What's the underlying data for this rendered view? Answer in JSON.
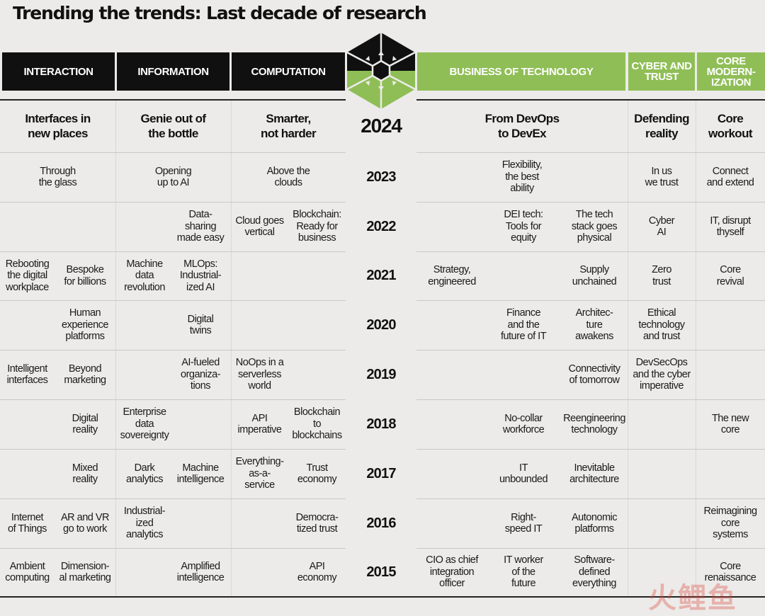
{
  "title": "Trending the trends: Last decade of research",
  "headers": [
    {
      "label": "INTERACTION",
      "theme": "black"
    },
    {
      "label": "INFORMATION",
      "theme": "black"
    },
    {
      "label": "COMPUTATION",
      "theme": "black"
    },
    {
      "label": "BUSINESS OF TECHNOLOGY",
      "theme": "green"
    },
    {
      "label": "CYBER AND\nTRUST",
      "theme": "green"
    },
    {
      "label": "CORE\nMODERN-\nIZATION",
      "theme": "green"
    }
  ],
  "colors": {
    "black": "#101010",
    "green": "#8fbe56",
    "background": "#ecebe9"
  },
  "logo_icon": "hexagon-emblem-icon",
  "years": [
    {
      "year": "2024",
      "cells": {
        "interaction": "Interfaces in\nnew places",
        "information": "Genie out of\nthe bottle",
        "computation": "Smarter,\nnot harder",
        "business": "From DevOps\nto DevEx",
        "cyber": "Defending\nreality",
        "core": "Core\nworkout"
      }
    },
    {
      "year": "2023",
      "cells": {
        "interaction": "Through\nthe glass",
        "information": "Opening\nup to AI",
        "computation": "Above the\nclouds",
        "business": "Flexibility,\nthe best\nability",
        "cyber": "In us\nwe trust",
        "core": "Connect\nand extend"
      }
    },
    {
      "year": "2022",
      "cells": {
        "information_b": "Data-\nsharing\nmade easy",
        "computation_a": "Cloud goes\nvertical",
        "computation_b": "Blockchain:\nReady for\nbusiness",
        "business_b": "DEI tech:\nTools for\nequity",
        "business_c": "The tech\nstack goes\nphysical",
        "cyber": "Cyber\nAI",
        "core": "IT, disrupt\nthyself"
      }
    },
    {
      "year": "2021",
      "cells": {
        "interaction_a": "Rebooting\nthe digital\nworkplace",
        "interaction_b": "Bespoke\nfor billions",
        "information_a": "Machine\ndata\nrevolution",
        "information_b": "MLOps:\nIndustrial-\nized AI",
        "business_a": "Strategy,\nengineered",
        "business_c": "Supply\nunchained",
        "cyber": "Zero\ntrust",
        "core": "Core\nrevival"
      }
    },
    {
      "year": "2020",
      "cells": {
        "interaction_b": "Human\nexperience\nplatforms",
        "information_b": "Digital\ntwins",
        "business_b": "Finance\nand the\nfuture of IT",
        "business_c": "Architec-\nture\nawakens",
        "cyber": "Ethical\ntechnology\nand trust"
      }
    },
    {
      "year": "2019",
      "cells": {
        "interaction_a": "Intelligent\ninterfaces",
        "interaction_b": "Beyond\nmarketing",
        "information_b": "AI-fueled\norganiza-\ntions",
        "computation_a": "NoOps in a\nserverless\nworld",
        "business_c": "Connectivity\nof tomorrow",
        "cyber": "DevSecOps\nand the cyber\nimperative"
      }
    },
    {
      "year": "2018",
      "cells": {
        "interaction_b": "Digital\nreality",
        "information_a": "Enterprise\ndata\nsovereignty",
        "computation_a": "API\nimperative",
        "computation_b": "Blockchain\nto\nblockchains",
        "business_b": "No-collar\nworkforce",
        "business_c": "Reengineering\ntechnology",
        "core": "The new\ncore"
      }
    },
    {
      "year": "2017",
      "cells": {
        "interaction_b": "Mixed\nreality",
        "information_a": "Dark\nanalytics",
        "information_b": "Machine\nintelligence",
        "computation_a": "Everything-\nas-a-\nservice",
        "computation_b": "Trust\neconomy",
        "business_b": "IT\nunbounded",
        "business_c": "Inevitable\narchitecture"
      }
    },
    {
      "year": "2016",
      "cells": {
        "interaction_a": "Internet\nof Things",
        "interaction_b": "AR and VR\ngo to work",
        "information_a": "Industrial-\nized\nanalytics",
        "computation_b": "Democra-\ntized trust",
        "business_b": "Right-\nspeed IT",
        "business_c": "Autonomic\nplatforms",
        "core": "Reimagining\ncore\nsystems"
      }
    },
    {
      "year": "2015",
      "cells": {
        "interaction_a": "Ambient\ncomputing",
        "interaction_b": "Dimension-\nal marketing",
        "information_b": "Amplified\nintelligence",
        "computation_b": "API\neconomy",
        "business_a": "CIO as chief\nintegration\nofficer",
        "business_b": "IT worker\nof the\nfuture",
        "business_c": "Software-\ndefined\neverything",
        "core": "Core\nrenaissance"
      }
    }
  ],
  "watermark": "火鲤鱼"
}
